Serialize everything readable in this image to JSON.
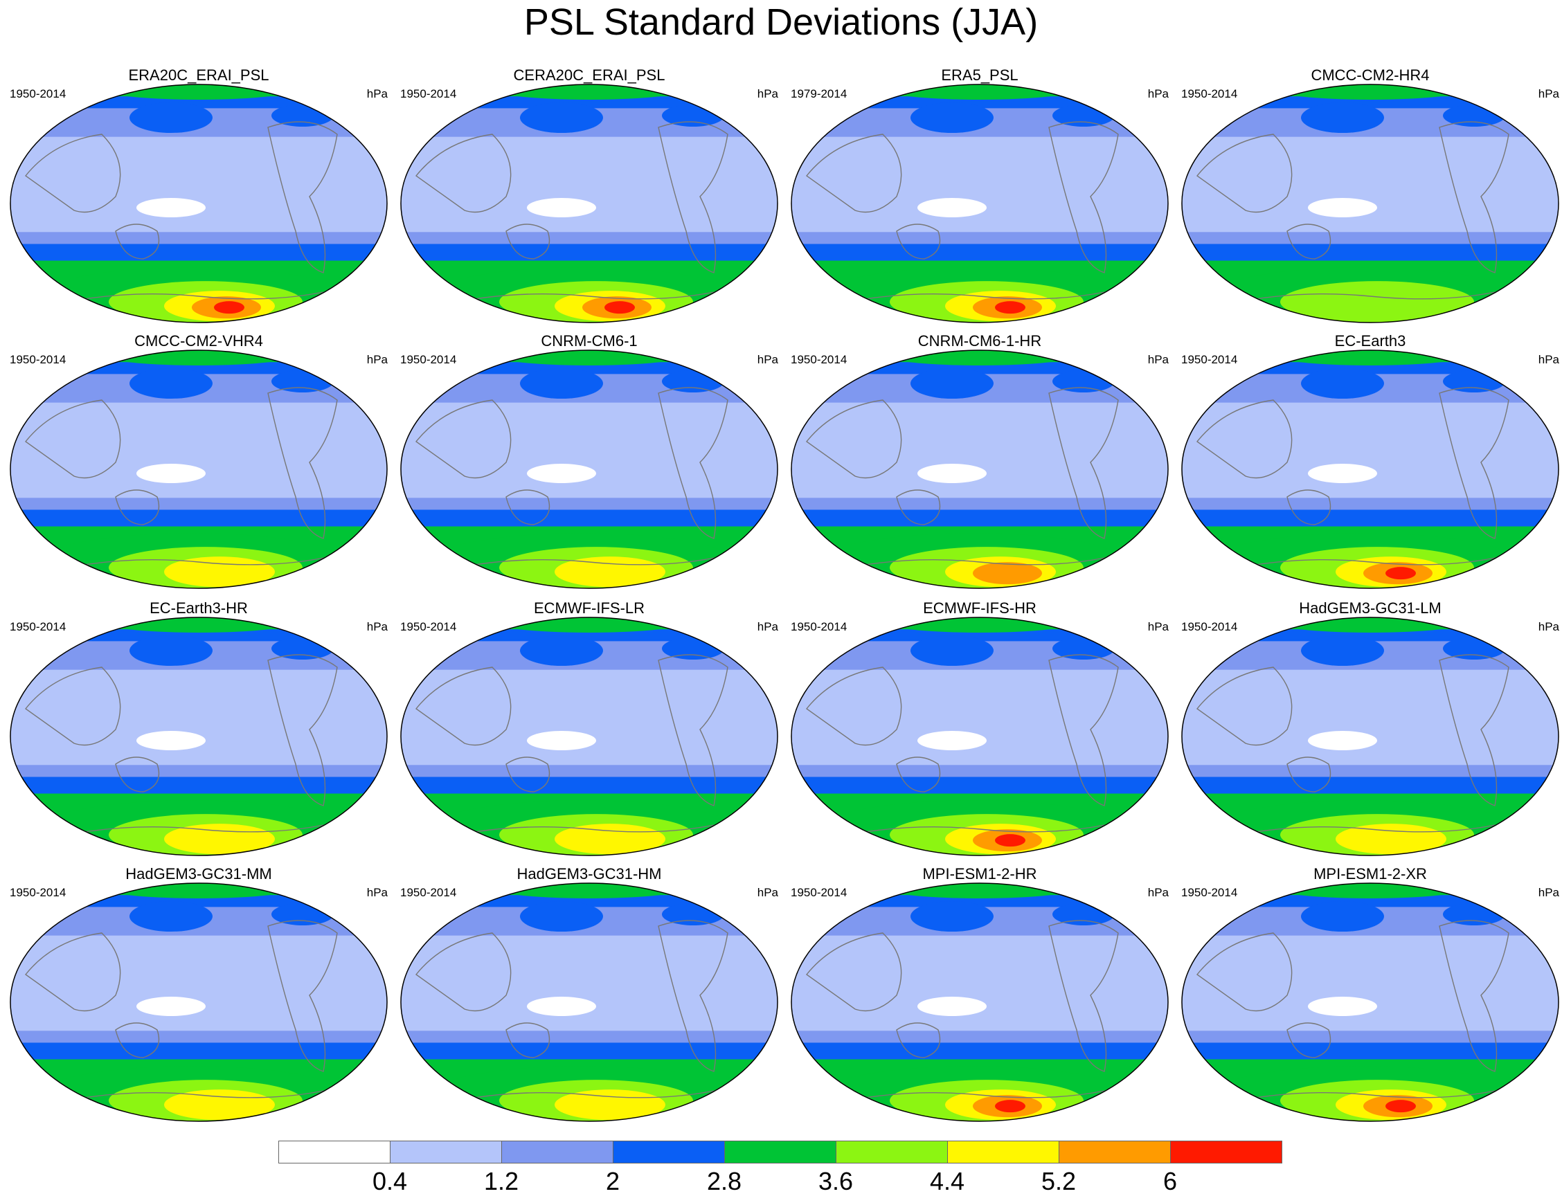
{
  "title": "PSL Standard Deviations (JJA)",
  "units": "hPa",
  "panels": [
    {
      "name": "ERA20C_ERAI_PSL",
      "period": "1950-2014",
      "max": 6.3
    },
    {
      "name": "CERA20C_ERAI_PSL",
      "period": "1950-2014",
      "max": 6.3
    },
    {
      "name": "ERA5_PSL",
      "period": "1979-2014",
      "max": 6.1
    },
    {
      "name": "CMCC-CM2-HR4",
      "period": "1950-2014",
      "max": 4.8
    },
    {
      "name": "CMCC-CM2-VHR4",
      "period": "1950-2014",
      "max": 5.4
    },
    {
      "name": "CNRM-CM6-1",
      "period": "1950-2014",
      "max": 5.6
    },
    {
      "name": "CNRM-CM6-1-HR",
      "period": "1950-2014",
      "max": 5.7
    },
    {
      "name": "EC-Earth3",
      "period": "1950-2014",
      "max": 6.1
    },
    {
      "name": "EC-Earth3-HR",
      "period": "1950-2014",
      "max": 5.6
    },
    {
      "name": "ECMWF-IFS-LR",
      "period": "1950-2014",
      "max": 5.6
    },
    {
      "name": "ECMWF-IFS-HR",
      "period": "1950-2014",
      "max": 6.2
    },
    {
      "name": "HadGEM3-GC31-LM",
      "period": "1950-2014",
      "max": 5.4
    },
    {
      "name": "HadGEM3-GC31-MM",
      "period": "1950-2014",
      "max": 5.4
    },
    {
      "name": "HadGEM3-GC31-HM",
      "period": "1950-2014",
      "max": 5.4
    },
    {
      "name": "MPI-ESM1-2-HR",
      "period": "1950-2014",
      "max": 6.4
    },
    {
      "name": "MPI-ESM1-2-XR",
      "period": "1950-2014",
      "max": 6.1
    }
  ],
  "colorbar": {
    "colors": [
      "#ffffff",
      "#b4c5fa",
      "#7f98f0",
      "#0a5ff5",
      "#00c435",
      "#8cf512",
      "#fff700",
      "#ff9b00",
      "#ff1a00"
    ],
    "labels": [
      "0.4",
      "1.2",
      "2",
      "2.8",
      "3.6",
      "4.4",
      "5.2",
      "6"
    ]
  }
}
